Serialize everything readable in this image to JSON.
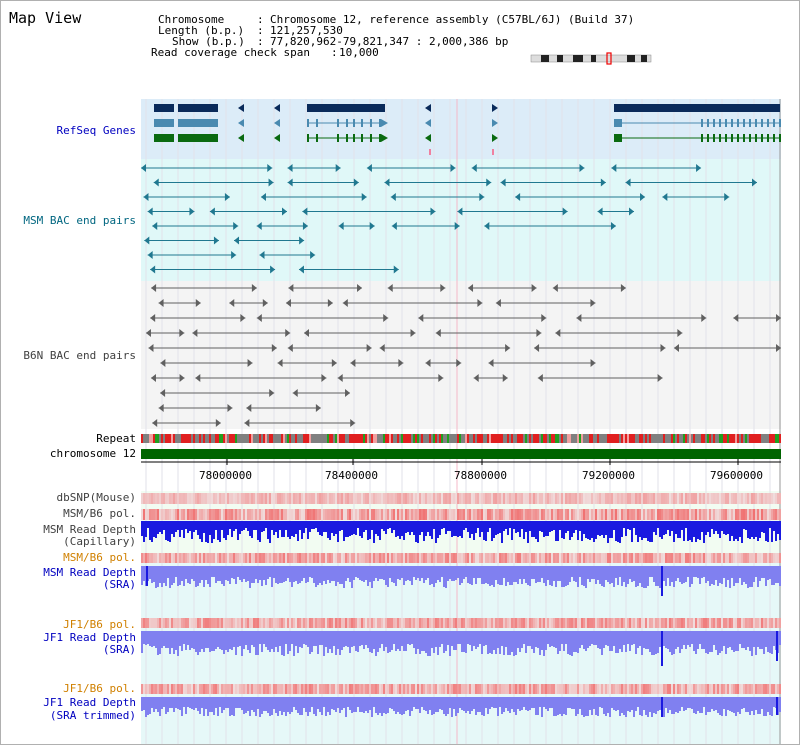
{
  "title": "Map View",
  "info": {
    "chromosome_label": "Chromosome",
    "chromosome_value": "Chromosome 12, reference assembly (C57BL/6J) (Build 37)",
    "length_label": "Length (b.p.)",
    "length_value": "121,257,530",
    "show_label": "Show (b.p.)",
    "show_value": "77,820,962-79,821,347 : 2,000,386 bp",
    "coverage_label": "Read coverage check span",
    "coverage_value": "10,000"
  },
  "tracks": {
    "refseq": "RefSeq Genes",
    "msm_bac": "MSM BAC end pairs",
    "b6n_bac": "B6N BAC end pairs",
    "repeat": "Repeat",
    "chromosome": "chromosome 12",
    "dbsnp": "dbSNP(Mouse)",
    "msm_b6_pol": "MSM/B6 pol.",
    "msm_read_depth_cap_1": "MSM Read Depth",
    "msm_read_depth_cap_2": "(Capillary)",
    "msm_b6_pol2": "MSM/B6 pol.",
    "msm_read_depth_sra_1": "MSM Read Depth",
    "msm_read_depth_sra_2": "(SRA)",
    "jf1_b6_pol": "JF1/B6 pol.",
    "jf1_read_depth_sra_1": "JF1 Read Depth",
    "jf1_read_depth_sra_2": "(SRA)",
    "jf1_b6_pol2": "JF1/B6 pol.",
    "jf1_read_depth_trim_1": "JF1 Read Depth",
    "jf1_read_depth_trim_2": "(SRA trimmed)"
  },
  "axis_ticks": [
    "78000000",
    "78400000",
    "78800000",
    "79200000",
    "79600000"
  ],
  "colors": {
    "refseq_bg": "#dcecf8",
    "msm_bg": "#e0f8f8",
    "b6n_bg": "#f4f4f4",
    "gene_navy": "#0a2a5a",
    "gene_teal": "#4a8ab0",
    "gene_green": "#0a6a10",
    "msm_line": "#207890",
    "b6n_line": "#606060",
    "chrom_green": "#006400",
    "depth_blue": "#1a1ae0",
    "depth_light": "#8080f0"
  }
}
